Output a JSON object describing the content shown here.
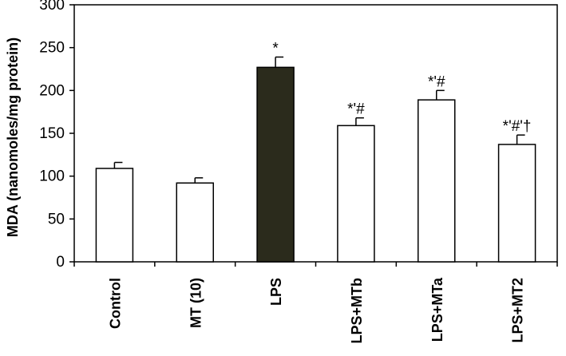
{
  "chart_data": {
    "type": "bar",
    "title": "",
    "xlabel": "",
    "ylabel": "MDA (nanomoles/mg protein)",
    "ylim": [
      0,
      300
    ],
    "yticks": [
      0,
      50,
      100,
      150,
      200,
      250,
      300
    ],
    "ytick_labels": [
      "0",
      "50",
      "100",
      "150",
      "200",
      "250",
      "300"
    ],
    "grid": false,
    "legend": "none",
    "categories": [
      "Control",
      "MT (10)",
      "LPS",
      "LPS+MTb",
      "LPS+MTa",
      "LPS+MT2"
    ],
    "values": [
      109,
      92,
      227,
      159,
      189,
      137
    ],
    "errors": [
      7,
      6,
      12,
      9,
      11,
      11
    ],
    "annotations": [
      "",
      "",
      "*",
      "*'#",
      "*'#",
      "*'#'†"
    ],
    "bar_colors": [
      "#ffffff",
      "#ffffff",
      "#2b2b1c",
      "#ffffff",
      "#ffffff",
      "#ffffff"
    ]
  }
}
